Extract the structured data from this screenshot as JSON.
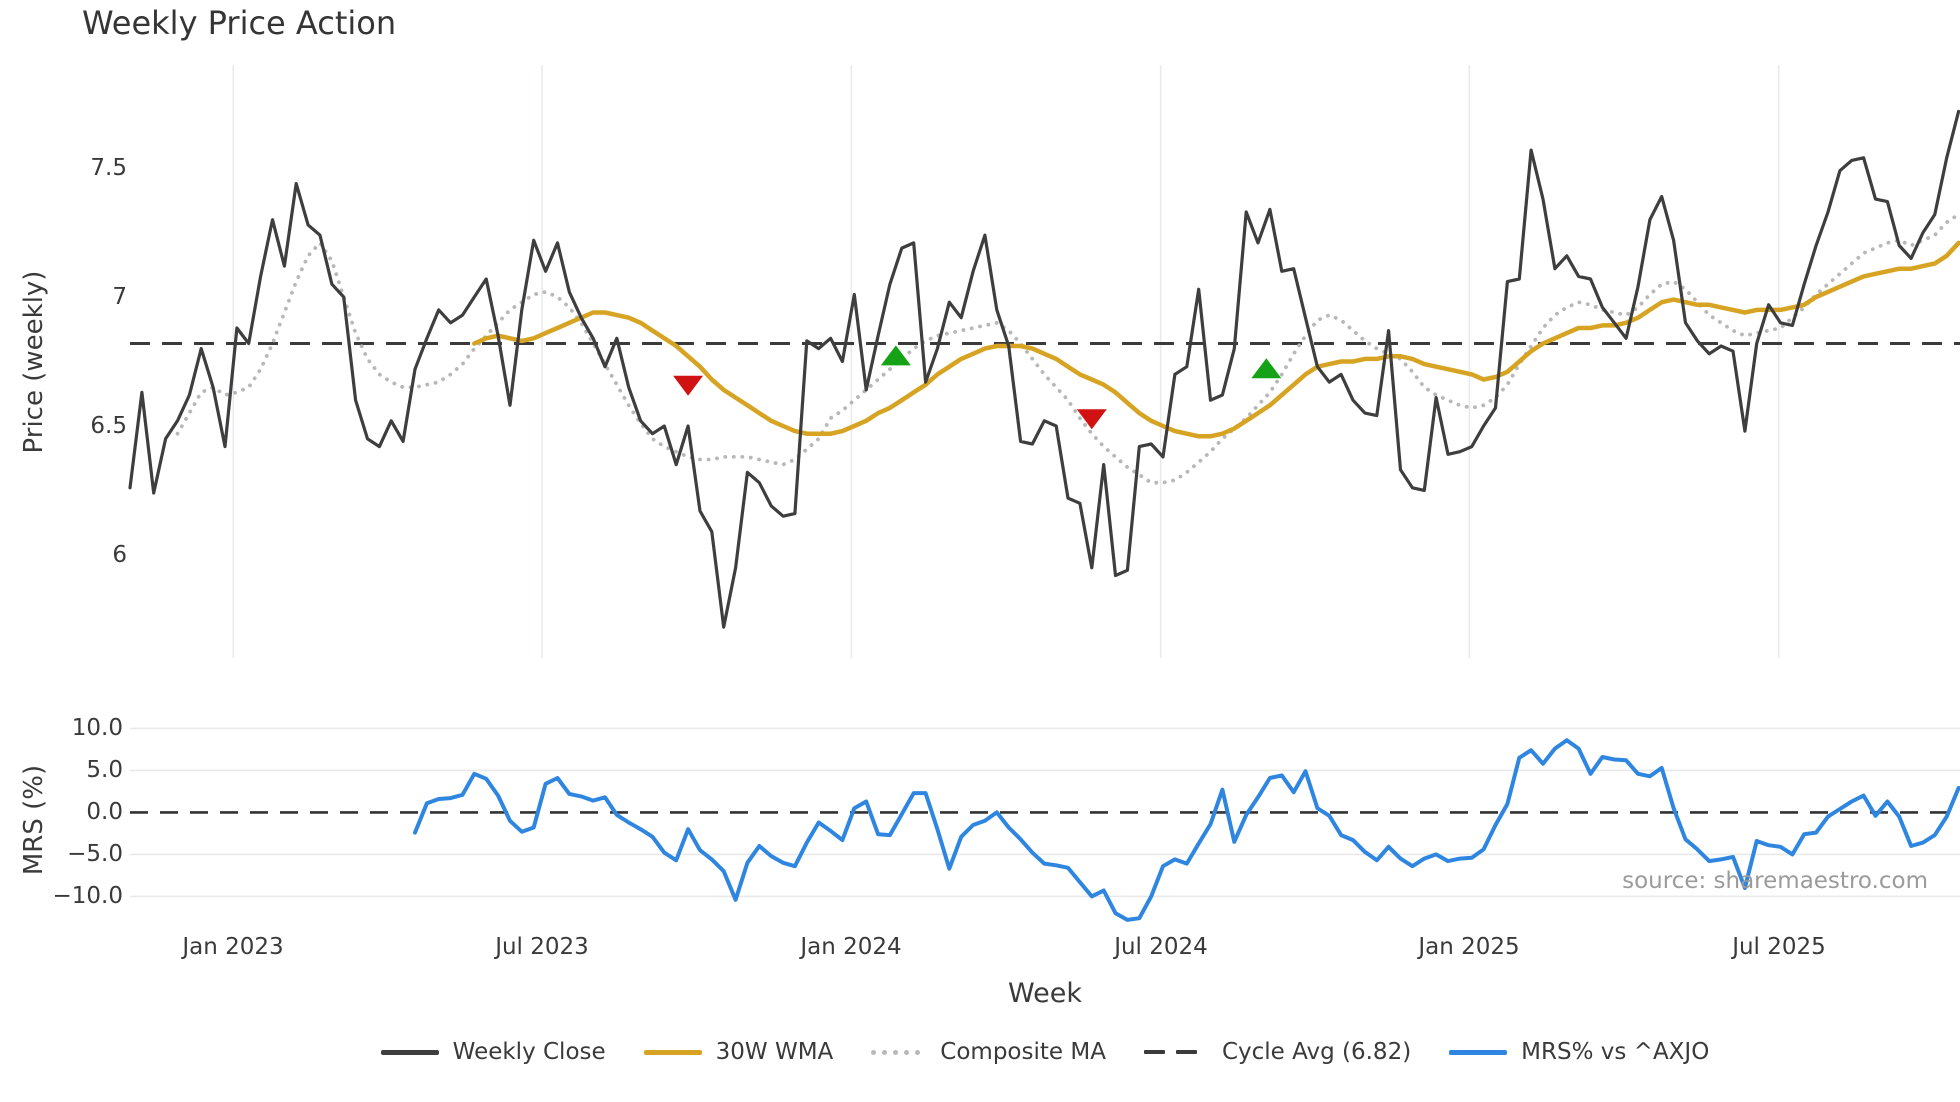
{
  "title": "Weekly Price Action",
  "source_note": "source: sharemaestro.com",
  "colors": {
    "close": "#3e3e3e",
    "wma": "#d7a322",
    "composite": "#b8b8b8",
    "cycle": "#3a3a3a",
    "mrs": "#2e86e0",
    "sell_marker": "#d01212",
    "buy_marker": "#16a216",
    "grid_vertical": "#e7ebef",
    "grid_horizontal": "#e9e9e9",
    "zero_dash": "#333333",
    "text": "#3a3a3a",
    "source_text": "#9b9b9b"
  },
  "x_axis": {
    "label": "Week",
    "total_weeks": 155,
    "ticks": [
      {
        "label": "Jan 2023",
        "week": 8.7
      },
      {
        "label": "Jul 2023",
        "week": 34.7
      },
      {
        "label": "Jan 2024",
        "week": 60.75
      },
      {
        "label": "Jul 2024",
        "week": 86.8
      },
      {
        "label": "Jan 2025",
        "week": 112.8
      },
      {
        "label": "Jul 2025",
        "week": 138.85
      }
    ]
  },
  "legend": [
    {
      "label": "Weekly Close",
      "swatch": "solid",
      "color_key": "close"
    },
    {
      "label": "30W WMA",
      "swatch": "solid",
      "color_key": "wma"
    },
    {
      "label": "Composite MA",
      "swatch": "dotted",
      "color_key": "composite"
    },
    {
      "label": "Cycle Avg (6.82)",
      "swatch": "dashed",
      "color_key": "cycle"
    },
    {
      "label": "MRS% vs ^AXJO",
      "swatch": "solid",
      "color_key": "mrs"
    }
  ],
  "chart_data": [
    {
      "type": "line",
      "panel": "price",
      "title": "Weekly Price Action",
      "ylabel": "Price (weekly)",
      "ylim": [
        5.6,
        7.9
      ],
      "grid": "vertical",
      "yticks": [
        {
          "label": "7.5",
          "value": 7.5
        },
        {
          "label": "7",
          "value": 7.0
        },
        {
          "label": "6.5",
          "value": 6.5
        },
        {
          "label": "6",
          "value": 6.0
        }
      ],
      "cycle_avg": 6.82,
      "series": [
        {
          "name": "Weekly Close",
          "color_key": "close",
          "style": "solid",
          "width": 3.2,
          "start_week": 0,
          "values": [
            6.26,
            6.63,
            6.24,
            6.45,
            6.52,
            6.62,
            6.8,
            6.65,
            6.42,
            6.88,
            6.82,
            7.08,
            7.3,
            7.12,
            7.44,
            7.28,
            7.24,
            7.05,
            7.0,
            6.6,
            6.45,
            6.42,
            6.52,
            6.44,
            6.72,
            6.84,
            6.95,
            6.9,
            6.93,
            7.0,
            7.07,
            6.85,
            6.58,
            6.95,
            7.22,
            7.1,
            7.21,
            7.02,
            6.92,
            6.84,
            6.73,
            6.84,
            6.65,
            6.52,
            6.47,
            6.5,
            6.35,
            6.5,
            6.17,
            6.09,
            5.72,
            5.95,
            6.32,
            6.28,
            6.19,
            6.15,
            6.16,
            6.83,
            6.8,
            6.84,
            6.75,
            7.01,
            6.64,
            6.85,
            7.05,
            7.19,
            7.21,
            6.67,
            6.8,
            6.98,
            6.92,
            7.1,
            7.24,
            6.95,
            6.81,
            6.44,
            6.43,
            6.52,
            6.5,
            6.22,
            6.2,
            5.95,
            6.35,
            5.92,
            5.94,
            6.42,
            6.43,
            6.38,
            6.7,
            6.73,
            7.03,
            6.6,
            6.62,
            6.8,
            7.33,
            7.21,
            7.34,
            7.1,
            7.11,
            6.92,
            6.73,
            6.67,
            6.7,
            6.6,
            6.55,
            6.54,
            6.87,
            6.33,
            6.26,
            6.25,
            6.61,
            6.39,
            6.4,
            6.42,
            6.5,
            6.57,
            7.06,
            7.07,
            7.57,
            7.38,
            7.11,
            7.16,
            7.08,
            7.07,
            6.96,
            6.9,
            6.84,
            7.04,
            7.3,
            7.39,
            7.22,
            6.9,
            6.83,
            6.78,
            6.81,
            6.79,
            6.48,
            6.82,
            6.97,
            6.9,
            6.89,
            7.05,
            7.2,
            7.33,
            7.49,
            7.53,
            7.54,
            7.38,
            7.37,
            7.2,
            7.15,
            7.25,
            7.32,
            7.54,
            7.72
          ]
        },
        {
          "name": "30W WMA",
          "color_key": "wma",
          "style": "solid",
          "width": 4.5,
          "start_week": 29,
          "values": [
            6.82,
            6.84,
            6.85,
            6.84,
            6.83,
            6.84,
            6.86,
            6.88,
            6.9,
            6.92,
            6.94,
            6.94,
            6.93,
            6.92,
            6.9,
            6.87,
            6.84,
            6.81,
            6.77,
            6.73,
            6.68,
            6.64,
            6.61,
            6.58,
            6.55,
            6.52,
            6.5,
            6.48,
            6.47,
            6.47,
            6.47,
            6.48,
            6.5,
            6.52,
            6.55,
            6.57,
            6.6,
            6.63,
            6.66,
            6.7,
            6.73,
            6.76,
            6.78,
            6.8,
            6.81,
            6.81,
            6.81,
            6.8,
            6.78,
            6.76,
            6.73,
            6.7,
            6.68,
            6.66,
            6.63,
            6.59,
            6.55,
            6.52,
            6.5,
            6.48,
            6.47,
            6.46,
            6.46,
            6.47,
            6.49,
            6.52,
            6.55,
            6.58,
            6.62,
            6.66,
            6.7,
            6.73,
            6.74,
            6.75,
            6.75,
            6.76,
            6.76,
            6.77,
            6.77,
            6.76,
            6.74,
            6.73,
            6.72,
            6.71,
            6.7,
            6.68,
            6.69,
            6.71,
            6.75,
            6.79,
            6.82,
            6.84,
            6.86,
            6.88,
            6.88,
            6.89,
            6.89,
            6.9,
            6.92,
            6.95,
            6.98,
            6.99,
            6.98,
            6.97,
            6.97,
            6.96,
            6.95,
            6.94,
            6.95,
            6.95,
            6.95,
            6.96,
            6.97,
            7.0,
            7.02,
            7.04,
            7.06,
            7.08,
            7.09,
            7.1,
            7.11,
            7.11,
            7.12,
            7.13,
            7.16,
            7.21
          ]
        },
        {
          "name": "Composite MA",
          "color_key": "composite",
          "style": "dotted",
          "width": 3.8,
          "start_week": 4,
          "values": [
            6.47,
            6.55,
            6.63,
            6.65,
            6.62,
            6.63,
            6.65,
            6.72,
            6.82,
            6.94,
            7.06,
            7.16,
            7.21,
            7.14,
            7.0,
            6.86,
            6.76,
            6.7,
            6.67,
            6.65,
            6.65,
            6.66,
            6.67,
            6.7,
            6.74,
            6.8,
            6.85,
            6.9,
            6.95,
            6.98,
            7.01,
            7.02,
            7.0,
            6.96,
            6.9,
            6.82,
            6.74,
            6.66,
            6.58,
            6.51,
            6.45,
            6.42,
            6.4,
            6.38,
            6.37,
            6.37,
            6.38,
            6.38,
            6.38,
            6.37,
            6.36,
            6.35,
            6.37,
            6.41,
            6.45,
            6.53,
            6.56,
            6.6,
            6.64,
            6.68,
            6.72,
            6.76,
            6.8,
            6.83,
            6.85,
            6.86,
            6.87,
            6.88,
            6.89,
            6.9,
            6.87,
            6.82,
            6.76,
            6.7,
            6.65,
            6.6,
            6.53,
            6.47,
            6.42,
            6.38,
            6.34,
            6.31,
            6.28,
            6.28,
            6.29,
            6.32,
            6.36,
            6.4,
            6.45,
            6.49,
            6.53,
            6.58,
            6.63,
            6.7,
            6.78,
            6.85,
            6.91,
            6.93,
            6.91,
            6.87,
            6.83,
            6.8,
            6.78,
            6.76,
            6.71,
            6.65,
            6.62,
            6.6,
            6.58,
            6.57,
            6.58,
            6.61,
            6.66,
            6.74,
            6.81,
            6.88,
            6.93,
            6.96,
            6.98,
            6.97,
            6.95,
            6.94,
            6.93,
            6.96,
            7.01,
            7.05,
            7.06,
            7.03,
            6.98,
            6.93,
            6.9,
            6.87,
            6.85,
            6.86,
            6.87,
            6.88,
            6.92,
            6.96,
            7.01,
            7.05,
            7.09,
            7.13,
            7.17,
            7.19,
            7.21,
            7.22,
            7.2,
            7.22,
            7.24,
            7.29,
            7.32
          ]
        },
        {
          "name": "Cycle Avg (6.82)",
          "color_key": "cycle",
          "style": "dashed",
          "width": 3,
          "hline": 6.82
        }
      ],
      "signals": {
        "sell": [
          {
            "week": 47,
            "price": 6.66
          },
          {
            "week": 81,
            "price": 6.53
          }
        ],
        "buy": [
          {
            "week": 64.5,
            "price": 6.77
          },
          {
            "week": 95.7,
            "price": 6.72
          }
        ]
      }
    },
    {
      "type": "line",
      "panel": "mrs",
      "ylabel": "MRS (%)",
      "ylim": [
        -13.5,
        11
      ],
      "grid": "horizontal",
      "yticks": [
        {
          "label": "10.0",
          "value": 10
        },
        {
          "label": "5.0",
          "value": 5
        },
        {
          "label": "0.0",
          "value": 0
        },
        {
          "label": "−5.0",
          "value": -5
        },
        {
          "label": "−10.0",
          "value": -10
        }
      ],
      "zero_line_dashed": true,
      "series": [
        {
          "name": "MRS% vs ^AXJO",
          "color_key": "mrs",
          "style": "solid",
          "width": 4,
          "start_week": 24,
          "values": [
            -2.4,
            1.1,
            1.6,
            1.7,
            2.1,
            4.6,
            4.0,
            2.0,
            -1.0,
            -2.3,
            -1.8,
            3.4,
            4.1,
            2.2,
            1.9,
            1.4,
            1.8,
            -0.3,
            -1.2,
            -2.0,
            -2.9,
            -4.8,
            -5.7,
            -2.0,
            -4.5,
            -5.6,
            -7.0,
            -10.4,
            -6.0,
            -4.0,
            -5.2,
            -6.0,
            -6.4,
            -3.6,
            -1.2,
            -2.2,
            -3.3,
            0.5,
            1.3,
            -2.6,
            -2.7,
            -0.2,
            2.3,
            2.3,
            -2.0,
            -6.7,
            -2.9,
            -1.5,
            -1.0,
            0.0,
            -1.8,
            -3.2,
            -4.8,
            -6.1,
            -6.3,
            -6.6,
            -8.3,
            -10.0,
            -9.3,
            -12.0,
            -12.8,
            -12.6,
            -10.0,
            -6.4,
            -5.6,
            -6.1,
            -3.7,
            -1.4,
            2.7,
            -3.5,
            -0.3,
            1.8,
            4.1,
            4.4,
            2.4,
            4.9,
            0.5,
            -0.4,
            -2.7,
            -3.3,
            -4.7,
            -5.7,
            -4.1,
            -5.5,
            -6.4,
            -5.5,
            -5.0,
            -5.8,
            -5.5,
            -5.4,
            -4.4,
            -1.5,
            1.0,
            6.5,
            7.4,
            5.8,
            7.6,
            8.6,
            7.6,
            4.6,
            6.6,
            6.3,
            6.2,
            4.6,
            4.3,
            5.3,
            0.5,
            -3.2,
            -4.4,
            -5.8,
            -5.6,
            -5.3,
            -9.0,
            -3.4,
            -3.9,
            -4.1,
            -5.0,
            -2.6,
            -2.4,
            -0.5,
            0.4,
            1.3,
            2.0,
            -0.4,
            1.3,
            -0.5,
            -4.0,
            -3.6,
            -2.7,
            -0.5,
            2.9
          ]
        }
      ]
    }
  ]
}
